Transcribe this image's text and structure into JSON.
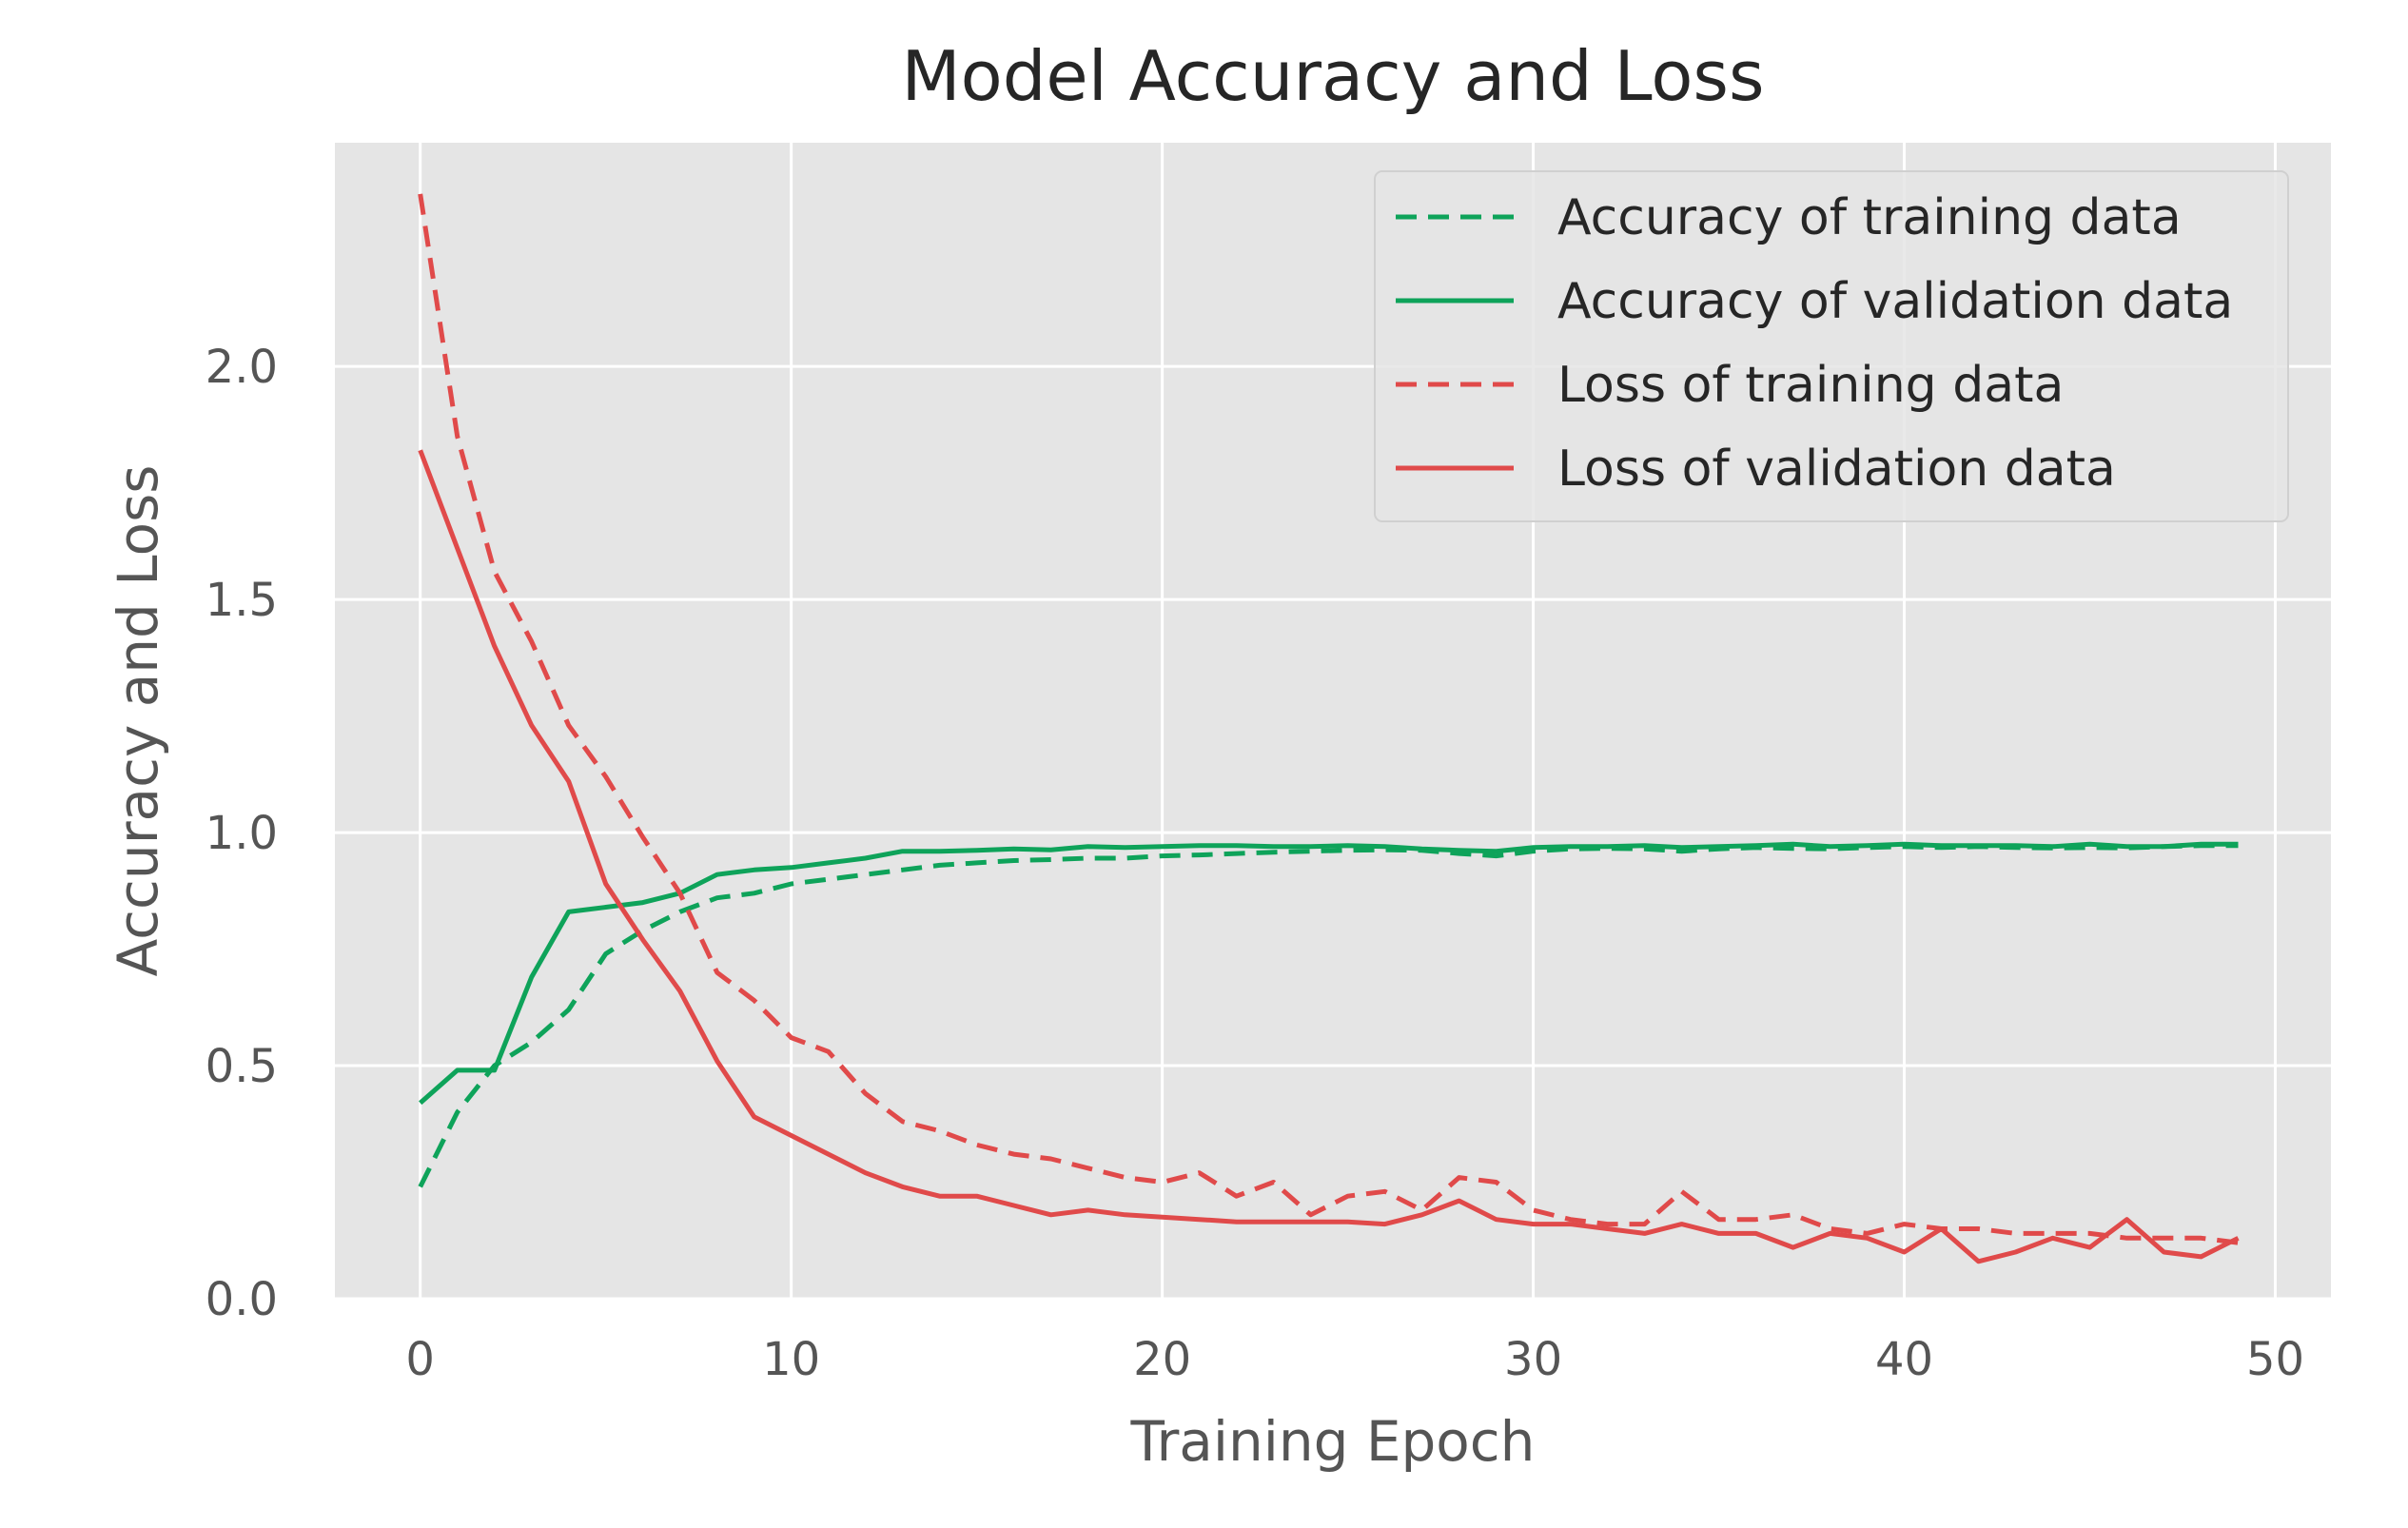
{
  "chart_data": {
    "type": "line",
    "title": "Model Accuracy and Loss",
    "xlabel": "Training Epoch",
    "ylabel": "Accuracy and Loss",
    "xlim": [
      -2.3,
      51.5
    ],
    "ylim": [
      0,
      2.48
    ],
    "xticks": [
      0,
      10,
      20,
      30,
      40,
      50
    ],
    "xtick_labels": [
      "0",
      "10",
      "20",
      "30",
      "40",
      "50"
    ],
    "yticks": [
      0,
      0.5,
      1.0,
      1.5,
      2.0
    ],
    "ytick_labels": [
      "0.0",
      "0.5",
      "1.0",
      "1.5",
      "2.0"
    ],
    "grid": true,
    "legend_position": "top-right",
    "colors": {
      "accuracy": "#0ea35a",
      "loss": "#e04a4a",
      "background": "#e5e5e5",
      "grid": "#ffffff"
    },
    "x": [
      0,
      1,
      2,
      3,
      4,
      5,
      6,
      7,
      8,
      9,
      10,
      11,
      12,
      13,
      14,
      15,
      16,
      17,
      18,
      19,
      20,
      21,
      22,
      23,
      24,
      25,
      26,
      27,
      28,
      29,
      30,
      31,
      32,
      33,
      34,
      35,
      36,
      37,
      38,
      39,
      40,
      41,
      42,
      43,
      44,
      45,
      46,
      47,
      48,
      49
    ],
    "series": [
      {
        "name": "Accuracy of training data",
        "style": "dashed",
        "color": "#0ea35a",
        "values": [
          0.24,
          0.4,
          0.5,
          0.55,
          0.62,
          0.74,
          0.79,
          0.83,
          0.86,
          0.87,
          0.89,
          0.9,
          0.91,
          0.92,
          0.93,
          0.935,
          0.94,
          0.942,
          0.945,
          0.945,
          0.95,
          0.952,
          0.955,
          0.958,
          0.96,
          0.962,
          0.963,
          0.962,
          0.955,
          0.95,
          0.96,
          0.965,
          0.966,
          0.965,
          0.96,
          0.965,
          0.968,
          0.966,
          0.965,
          0.968,
          0.97,
          0.968,
          0.97,
          0.968,
          0.967,
          0.968,
          0.967,
          0.97,
          0.972,
          0.972
        ]
      },
      {
        "name": "Accuracy of validation data",
        "style": "solid",
        "color": "#0ea35a",
        "values": [
          0.42,
          0.49,
          0.49,
          0.69,
          0.83,
          0.84,
          0.85,
          0.87,
          0.91,
          0.92,
          0.925,
          0.935,
          0.945,
          0.96,
          0.96,
          0.962,
          0.965,
          0.963,
          0.97,
          0.968,
          0.97,
          0.972,
          0.972,
          0.97,
          0.97,
          0.972,
          0.97,
          0.965,
          0.962,
          0.96,
          0.968,
          0.97,
          0.97,
          0.972,
          0.968,
          0.97,
          0.972,
          0.975,
          0.97,
          0.972,
          0.975,
          0.972,
          0.972,
          0.972,
          0.97,
          0.975,
          0.97,
          0.97,
          0.975,
          0.975
        ]
      },
      {
        "name": "Loss of training data",
        "style": "dashed",
        "color": "#e04a4a",
        "values": [
          2.37,
          1.85,
          1.56,
          1.41,
          1.23,
          1.12,
          0.99,
          0.87,
          0.7,
          0.64,
          0.56,
          0.53,
          0.44,
          0.38,
          0.36,
          0.33,
          0.31,
          0.3,
          0.28,
          0.26,
          0.25,
          0.27,
          0.22,
          0.25,
          0.18,
          0.22,
          0.23,
          0.19,
          0.26,
          0.25,
          0.19,
          0.17,
          0.16,
          0.16,
          0.23,
          0.17,
          0.17,
          0.18,
          0.15,
          0.14,
          0.16,
          0.15,
          0.15,
          0.14,
          0.14,
          0.14,
          0.13,
          0.13,
          0.13,
          0.12
        ]
      },
      {
        "name": "Loss of validation data",
        "style": "solid",
        "color": "#e04a4a",
        "values": [
          1.82,
          1.61,
          1.4,
          1.23,
          1.11,
          0.89,
          0.77,
          0.66,
          0.51,
          0.39,
          0.35,
          0.31,
          0.27,
          0.24,
          0.22,
          0.22,
          0.2,
          0.18,
          0.19,
          0.18,
          0.175,
          0.17,
          0.165,
          0.165,
          0.165,
          0.165,
          0.16,
          0.18,
          0.21,
          0.17,
          0.16,
          0.16,
          0.15,
          0.14,
          0.16,
          0.14,
          0.14,
          0.11,
          0.14,
          0.13,
          0.1,
          0.15,
          0.08,
          0.1,
          0.13,
          0.11,
          0.17,
          0.1,
          0.09,
          0.13
        ]
      }
    ]
  }
}
